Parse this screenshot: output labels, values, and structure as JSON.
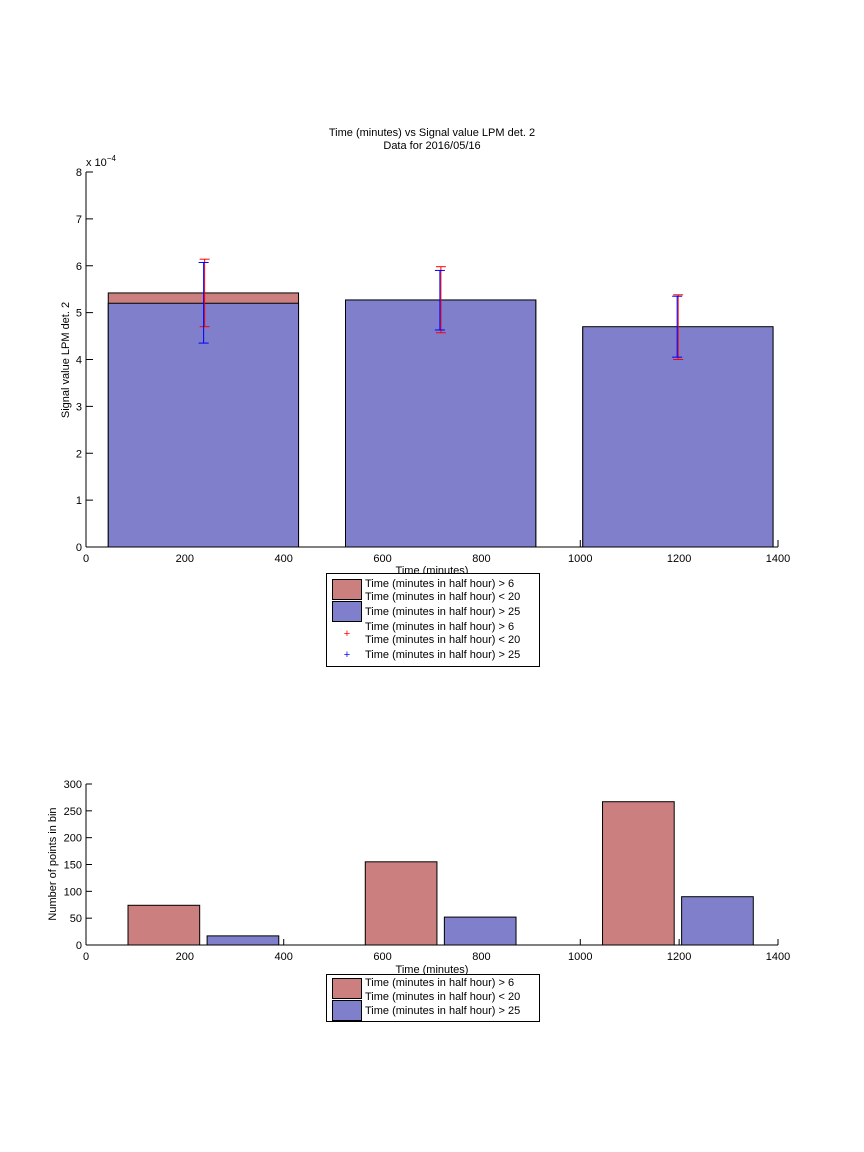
{
  "top_chart": {
    "title_line1": "Time (minutes) vs Signal value LPM det. 2",
    "title_line2": "Data for 2016/05/16",
    "exponent_label": "x 10",
    "exponent_power": "−4",
    "xlabel": "Time (minutes)",
    "ylabel": "Signal value LPM det. 2",
    "legend": [
      "Time (minutes in half hour) > 6",
      "Time (minutes in half hour) < 20",
      "Time (minutes in half hour) > 25",
      "Time (minutes in half hour) > 6",
      "Time (minutes in half hour) < 20",
      "Time (minutes in half hour) > 25"
    ]
  },
  "bottom_chart": {
    "xlabel": "Time (minutes)",
    "ylabel": "Number of points in bin",
    "legend": [
      "Time (minutes in half hour) > 6",
      "Time (minutes in half hour) < 20",
      "Time (minutes in half hour) > 25"
    ]
  },
  "colors": {
    "red": "#cc7f7f",
    "blue": "#7f7fcc",
    "err_red": "#ff0000",
    "err_blue": "#0000ff"
  },
  "chart_data": [
    {
      "type": "bar",
      "title": "Time (minutes) vs Signal value LPM det. 2\nData for 2016/05/16",
      "xlabel": "Time (minutes)",
      "ylabel": "Signal value LPM det. 2",
      "y_scale_note": "x 10^-4",
      "xlim": [
        0,
        1400
      ],
      "ylim": [
        0,
        8
      ],
      "xticks": [
        0,
        200,
        400,
        600,
        800,
        1000,
        1200,
        1400
      ],
      "yticks": [
        0,
        1,
        2,
        3,
        4,
        5,
        6,
        7,
        8
      ],
      "bar_ranges": [
        [
          45,
          430
        ],
        [
          525,
          910
        ],
        [
          1005,
          1390
        ]
      ],
      "series": [
        {
          "name": "Time (minutes in half hour) > 6 / Time (minutes in half hour) < 20",
          "color": "#cc7f7f",
          "values": [
            5.42,
            5.27,
            4.69
          ]
        },
        {
          "name": "Time (minutes in half hour) > 25",
          "color": "#7f7fcc",
          "values": [
            5.2,
            5.27,
            4.7
          ]
        }
      ],
      "error_bars": [
        {
          "name": "Time (minutes in half hour) > 6 / Time (minutes in half hour) < 20",
          "color": "#ff0000",
          "x": [
            240,
            718,
            1198
          ],
          "low": [
            4.7,
            4.57,
            4.0
          ],
          "high": [
            6.14,
            5.98,
            5.38
          ]
        },
        {
          "name": "Time (minutes in half hour) > 25",
          "color": "#0000ff",
          "x": [
            240,
            718,
            1198
          ],
          "low": [
            4.35,
            4.63,
            4.05
          ],
          "high": [
            6.07,
            5.9,
            5.35
          ]
        }
      ],
      "legend_position": "below"
    },
    {
      "type": "bar",
      "xlabel": "Time (minutes)",
      "ylabel": "Number of points in bin",
      "xlim": [
        0,
        1400
      ],
      "ylim": [
        0,
        300
      ],
      "xticks": [
        0,
        200,
        400,
        600,
        800,
        1000,
        1200,
        1400
      ],
      "yticks": [
        0,
        50,
        100,
        150,
        200,
        250,
        300
      ],
      "series": [
        {
          "name": "Time (minutes in half hour) > 6 / Time (minutes in half hour) < 20",
          "color": "#cc7f7f",
          "x_ranges": [
            [
              85,
              230
            ],
            [
              565,
              710
            ],
            [
              1045,
              1190
            ]
          ],
          "values": [
            74,
            155,
            267
          ]
        },
        {
          "name": "Time (minutes in half hour) > 25",
          "color": "#7f7fcc",
          "x_ranges": [
            [
              245,
              390
            ],
            [
              725,
              870
            ],
            [
              1205,
              1350
            ]
          ],
          "values": [
            17,
            52,
            90
          ]
        }
      ],
      "legend_position": "below"
    }
  ]
}
